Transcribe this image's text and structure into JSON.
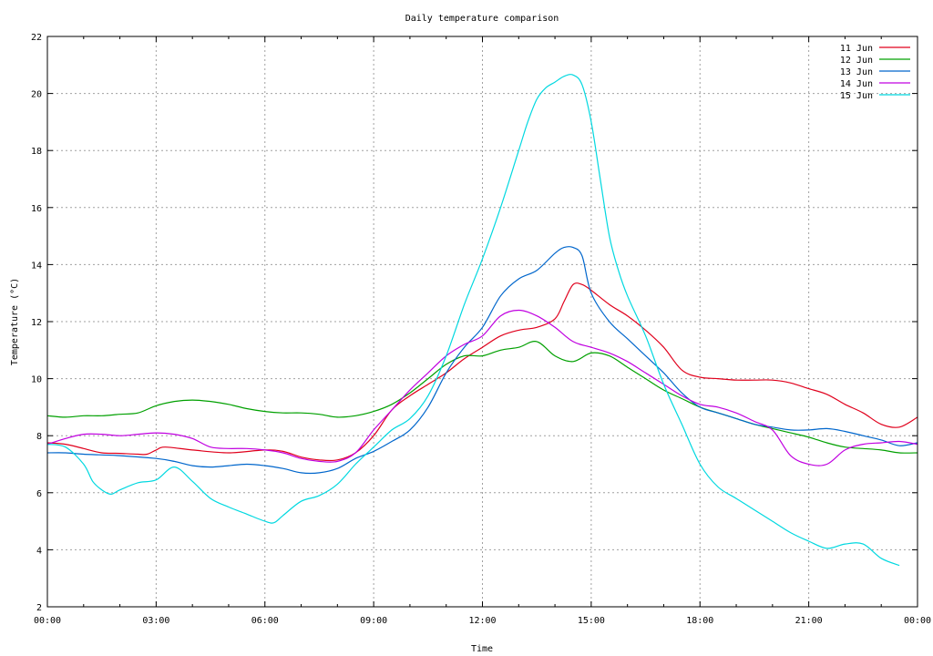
{
  "chart_data": {
    "type": "line",
    "title": "Daily temperature comparison",
    "xlabel": "Time",
    "ylabel": "Temperature (°C)",
    "xlim": [
      0,
      24
    ],
    "ylim": [
      2,
      22
    ],
    "grid": true,
    "legend_position": "top-right",
    "x_ticks": [
      {
        "value": 0,
        "label": "00:00"
      },
      {
        "value": 3,
        "label": "03:00"
      },
      {
        "value": 6,
        "label": "06:00"
      },
      {
        "value": 9,
        "label": "09:00"
      },
      {
        "value": 12,
        "label": "12:00"
      },
      {
        "value": 15,
        "label": "15:00"
      },
      {
        "value": 18,
        "label": "18:00"
      },
      {
        "value": 21,
        "label": "21:00"
      },
      {
        "value": 24,
        "label": "00:00"
      }
    ],
    "y_ticks": [
      2,
      4,
      6,
      8,
      10,
      12,
      14,
      16,
      18,
      20,
      22
    ],
    "series": [
      {
        "name": "11 Jun",
        "color": "#e0001c",
        "x": [
          0,
          0.5,
          1,
          1.5,
          2,
          2.5,
          2.75,
          3,
          3.25,
          4,
          5,
          6,
          6.5,
          7,
          7.5,
          8,
          8.5,
          9,
          9.5,
          10,
          10.5,
          11,
          11.5,
          12,
          12.5,
          13,
          13.5,
          14,
          14.25,
          14.5,
          14.75,
          15,
          15.5,
          16,
          16.5,
          17,
          17.5,
          18,
          18.5,
          19,
          19.5,
          20,
          20.5,
          21,
          21.5,
          22,
          22.5,
          23,
          23.5,
          24
        ],
        "y": [
          7.75,
          7.7,
          7.55,
          7.4,
          7.38,
          7.35,
          7.35,
          7.5,
          7.6,
          7.5,
          7.4,
          7.5,
          7.45,
          7.25,
          7.15,
          7.15,
          7.4,
          8.0,
          8.9,
          9.4,
          9.8,
          10.2,
          10.7,
          11.1,
          11.5,
          11.7,
          11.8,
          12.1,
          12.7,
          13.3,
          13.3,
          13.1,
          12.6,
          12.2,
          11.7,
          11.1,
          10.3,
          10.05,
          10.0,
          9.95,
          9.95,
          9.95,
          9.85,
          9.65,
          9.45,
          9.1,
          8.8,
          8.4,
          8.3,
          8.65
        ]
      },
      {
        "name": "12 Jun",
        "color": "#00a000",
        "x": [
          0,
          0.5,
          1,
          1.5,
          2,
          2.5,
          3,
          3.5,
          4,
          4.5,
          5,
          5.5,
          6,
          6.5,
          7,
          7.5,
          8,
          8.5,
          9,
          9.5,
          10,
          10.5,
          11,
          11.5,
          12,
          12.5,
          13,
          13.5,
          14,
          14.5,
          15,
          15.5,
          16,
          16.5,
          17,
          17.5,
          18,
          18.5,
          19,
          19.5,
          20,
          20.5,
          21,
          21.5,
          22,
          22.5,
          23,
          23.5,
          24
        ],
        "y": [
          8.7,
          8.65,
          8.7,
          8.7,
          8.75,
          8.8,
          9.05,
          9.2,
          9.25,
          9.2,
          9.1,
          8.95,
          8.85,
          8.8,
          8.8,
          8.75,
          8.65,
          8.7,
          8.85,
          9.1,
          9.5,
          10.0,
          10.5,
          10.8,
          10.8,
          11.0,
          11.1,
          11.3,
          10.8,
          10.6,
          10.9,
          10.8,
          10.4,
          10.0,
          9.6,
          9.3,
          9.0,
          8.8,
          8.6,
          8.4,
          8.25,
          8.1,
          7.95,
          7.75,
          7.6,
          7.55,
          7.5,
          7.4,
          7.4
        ]
      },
      {
        "name": "13 Jun",
        "color": "#0066cc",
        "x": [
          0,
          0.5,
          1,
          2,
          3,
          3.5,
          4,
          4.5,
          5,
          5.5,
          6,
          6.5,
          7,
          7.5,
          8,
          8.5,
          9,
          9.5,
          10,
          10.5,
          11,
          11.5,
          12,
          12.5,
          13,
          13.5,
          14,
          14.25,
          14.5,
          14.75,
          15,
          15.5,
          16,
          16.5,
          17,
          17.5,
          18,
          18.5,
          19,
          19.5,
          20,
          20.5,
          21,
          21.5,
          22,
          22.5,
          23,
          23.5,
          24
        ],
        "y": [
          7.4,
          7.4,
          7.35,
          7.3,
          7.2,
          7.1,
          6.95,
          6.9,
          6.95,
          7.0,
          6.95,
          6.85,
          6.7,
          6.7,
          6.85,
          7.2,
          7.45,
          7.8,
          8.2,
          9.0,
          10.2,
          11.1,
          11.8,
          12.9,
          13.5,
          13.8,
          14.4,
          14.6,
          14.6,
          14.3,
          13.0,
          12.0,
          11.4,
          10.8,
          10.2,
          9.5,
          9.0,
          8.8,
          8.6,
          8.4,
          8.3,
          8.2,
          8.2,
          8.25,
          8.15,
          8.0,
          7.85,
          7.65,
          7.75
        ]
      },
      {
        "name": "14 Jun",
        "color": "#c000e0",
        "x": [
          0,
          0.5,
          1,
          1.5,
          2,
          2.5,
          3,
          3.5,
          4,
          4.5,
          5,
          5.5,
          6,
          6.5,
          7,
          7.5,
          8,
          8.5,
          9,
          9.5,
          10,
          10.5,
          11,
          11.5,
          12,
          12.5,
          13,
          13.5,
          14,
          14.5,
          15,
          15.5,
          16,
          16.5,
          17,
          17.5,
          18,
          18.5,
          19,
          19.5,
          20,
          20.5,
          21,
          21.5,
          22,
          22.5,
          23,
          23.5,
          24
        ],
        "y": [
          7.7,
          7.9,
          8.05,
          8.05,
          8.0,
          8.05,
          8.1,
          8.05,
          7.9,
          7.6,
          7.55,
          7.55,
          7.5,
          7.4,
          7.2,
          7.1,
          7.1,
          7.4,
          8.2,
          8.9,
          9.6,
          10.2,
          10.8,
          11.2,
          11.5,
          12.2,
          12.4,
          12.2,
          11.8,
          11.3,
          11.1,
          10.9,
          10.6,
          10.2,
          9.8,
          9.4,
          9.1,
          9.0,
          8.8,
          8.5,
          8.2,
          7.3,
          7.0,
          7.0,
          7.5,
          7.7,
          7.75,
          7.8,
          7.7
        ]
      },
      {
        "name": "15 Jun",
        "color": "#00d8e0",
        "x": [
          0,
          0.5,
          1,
          1.25,
          1.5,
          1.75,
          2,
          2.5,
          3,
          3.5,
          4,
          4.5,
          5,
          5.5,
          6,
          6.25,
          6.5,
          7,
          7.5,
          8,
          8.5,
          9,
          9.5,
          10,
          10.5,
          11,
          11.5,
          12,
          12.5,
          13,
          13.25,
          13.5,
          13.75,
          14,
          14.25,
          14.5,
          14.75,
          15,
          15.25,
          15.5,
          15.75,
          16,
          16.5,
          17,
          17.5,
          18,
          18.5,
          19,
          19.5,
          20,
          20.5,
          21,
          21.5,
          22,
          22.5,
          23,
          23.5
        ],
        "y": [
          7.7,
          7.6,
          7.0,
          6.4,
          6.1,
          5.95,
          6.1,
          6.35,
          6.45,
          6.9,
          6.4,
          5.8,
          5.5,
          5.25,
          5.0,
          4.95,
          5.2,
          5.7,
          5.9,
          6.3,
          7.0,
          7.6,
          8.2,
          8.6,
          9.4,
          10.8,
          12.6,
          14.2,
          16.0,
          18.0,
          19.0,
          19.8,
          20.2,
          20.4,
          20.6,
          20.65,
          20.3,
          19.0,
          17.0,
          15.0,
          13.8,
          12.9,
          11.5,
          9.8,
          8.4,
          7.0,
          6.2,
          5.8,
          5.4,
          5.0,
          4.6,
          4.3,
          4.05,
          4.2,
          4.2,
          3.7,
          3.45
        ]
      }
    ]
  }
}
